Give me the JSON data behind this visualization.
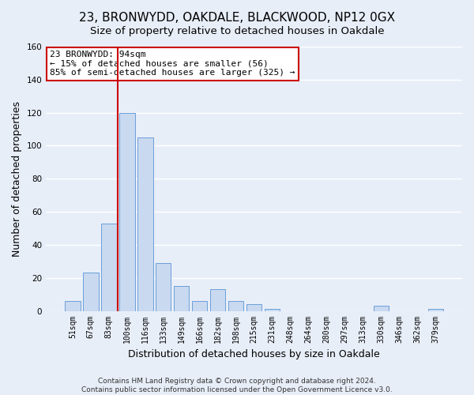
{
  "title": "23, BRONWYDD, OAKDALE, BLACKWOOD, NP12 0GX",
  "subtitle": "Size of property relative to detached houses in Oakdale",
  "xlabel": "Distribution of detached houses by size in Oakdale",
  "ylabel": "Number of detached properties",
  "bar_labels": [
    "51sqm",
    "67sqm",
    "83sqm",
    "100sqm",
    "116sqm",
    "133sqm",
    "149sqm",
    "166sqm",
    "182sqm",
    "198sqm",
    "215sqm",
    "231sqm",
    "248sqm",
    "264sqm",
    "280sqm",
    "297sqm",
    "313sqm",
    "330sqm",
    "346sqm",
    "362sqm",
    "379sqm"
  ],
  "bar_values": [
    6,
    23,
    53,
    120,
    105,
    29,
    15,
    6,
    13,
    6,
    4,
    1,
    0,
    0,
    0,
    0,
    0,
    3,
    0,
    0,
    1
  ],
  "bar_color": "#c9d9f0",
  "bar_edge_color": "#6a9fd8",
  "vline_color": "#cc0000",
  "vline_pos": 2.5,
  "ylim": [
    0,
    160
  ],
  "yticks": [
    0,
    20,
    40,
    60,
    80,
    100,
    120,
    140,
    160
  ],
  "ann_line1": "23 BRONWYDD: 94sqm",
  "ann_line2": "← 15% of detached houses are smaller (56)",
  "ann_line3": "85% of semi-detached houses are larger (325) →",
  "footer_line1": "Contains HM Land Registry data © Crown copyright and database right 2024.",
  "footer_line2": "Contains public sector information licensed under the Open Government Licence v3.0.",
  "bg_color": "#e8eef8",
  "grid_color": "#ffffff",
  "title_fontsize": 11,
  "subtitle_fontsize": 9.5,
  "axis_label_fontsize": 9,
  "tick_fontsize": 7,
  "annotation_fontsize": 8,
  "footer_fontsize": 6.5
}
